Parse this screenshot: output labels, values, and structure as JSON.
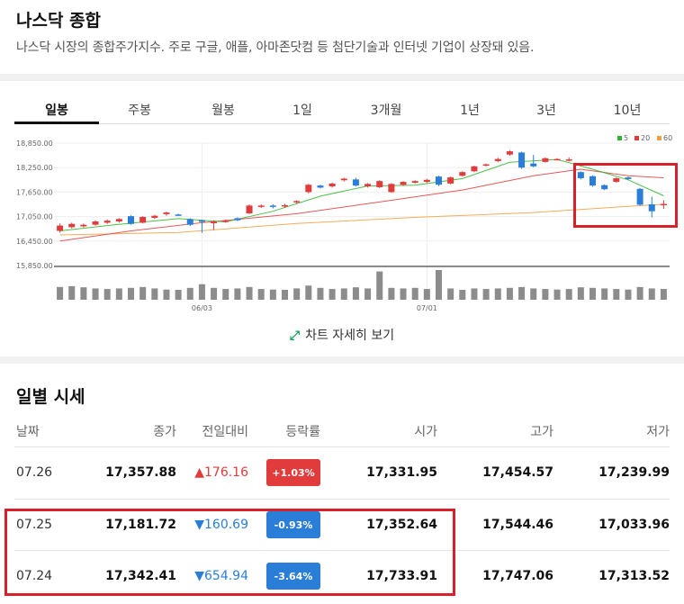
{
  "header": {
    "title": "나스닥 종합",
    "description": "나스닥 시장의 종합주가지수. 주로 구글, 애플, 아마존닷컴 등 첨단기술과 인터넷 기업이 상장돼 있음."
  },
  "tabs": [
    {
      "label": "일봉",
      "active": true
    },
    {
      "label": "주봉"
    },
    {
      "label": "월봉"
    },
    {
      "label": "1일"
    },
    {
      "label": "3개월"
    },
    {
      "label": "1년"
    },
    {
      "label": "3년"
    },
    {
      "label": "10년"
    }
  ],
  "chart_data": {
    "type": "candlestick",
    "y_ticks": [
      "18,850.00",
      "18,250.00",
      "17,650.00",
      "17,050.00",
      "16,450.00",
      "15,850.00"
    ],
    "ylim": [
      15850,
      18850
    ],
    "x_ticks": [
      {
        "label": "06/03",
        "index": 12
      },
      {
        "label": "07/01",
        "index": 31
      }
    ],
    "legend": [
      {
        "label": "5",
        "color": "#2db52d"
      },
      {
        "label": "20",
        "color": "#e23b3b"
      },
      {
        "label": "60",
        "color": "#f0a040"
      }
    ],
    "candles": [
      {
        "o": 16700,
        "c": 16830,
        "h": 16880,
        "l": 16660,
        "v": 45
      },
      {
        "o": 16790,
        "c": 16870,
        "h": 16900,
        "l": 16760,
        "v": 48
      },
      {
        "o": 16810,
        "c": 16850,
        "h": 16880,
        "l": 16780,
        "v": 44
      },
      {
        "o": 16850,
        "c": 16930,
        "h": 16960,
        "l": 16830,
        "v": 40
      },
      {
        "o": 16900,
        "c": 16950,
        "h": 16980,
        "l": 16870,
        "v": 38
      },
      {
        "o": 16930,
        "c": 16990,
        "h": 17010,
        "l": 16900,
        "v": 40
      },
      {
        "o": 17060,
        "c": 16870,
        "h": 17080,
        "l": 16850,
        "v": 42
      },
      {
        "o": 16900,
        "c": 17040,
        "h": 17060,
        "l": 16880,
        "v": 45
      },
      {
        "o": 17020,
        "c": 17070,
        "h": 17090,
        "l": 16990,
        "v": 40
      },
      {
        "o": 17110,
        "c": 17150,
        "h": 17170,
        "l": 17070,
        "v": 36
      },
      {
        "o": 17100,
        "c": 17090,
        "h": 17120,
        "l": 17070,
        "v": 35
      },
      {
        "o": 16990,
        "c": 16850,
        "h": 17010,
        "l": 16820,
        "v": 42
      },
      {
        "o": 16960,
        "c": 16920,
        "h": 16970,
        "l": 16650,
        "v": 55
      },
      {
        "o": 16900,
        "c": 16920,
        "h": 16960,
        "l": 16720,
        "v": 42
      },
      {
        "o": 16920,
        "c": 16950,
        "h": 16980,
        "l": 16900,
        "v": 38
      },
      {
        "o": 17010,
        "c": 16960,
        "h": 17030,
        "l": 16940,
        "v": 40
      },
      {
        "o": 17130,
        "c": 17320,
        "h": 17350,
        "l": 17110,
        "v": 45
      },
      {
        "o": 17290,
        "c": 17320,
        "h": 17350,
        "l": 17260,
        "v": 38
      },
      {
        "o": 17320,
        "c": 17310,
        "h": 17350,
        "l": 17250,
        "v": 36
      },
      {
        "o": 17330,
        "c": 17330,
        "h": 17360,
        "l": 17260,
        "v": 35
      },
      {
        "o": 17400,
        "c": 17430,
        "h": 17450,
        "l": 17360,
        "v": 40
      },
      {
        "o": 17650,
        "c": 17830,
        "h": 17850,
        "l": 17620,
        "v": 50
      },
      {
        "o": 17810,
        "c": 17760,
        "h": 17830,
        "l": 17740,
        "v": 42
      },
      {
        "o": 17790,
        "c": 17860,
        "h": 17880,
        "l": 17760,
        "v": 38
      },
      {
        "o": 17940,
        "c": 17980,
        "h": 18000,
        "l": 17910,
        "v": 40
      },
      {
        "o": 17960,
        "c": 17810,
        "h": 18000,
        "l": 17790,
        "v": 44
      },
      {
        "o": 17790,
        "c": 17850,
        "h": 17870,
        "l": 17760,
        "v": 40
      },
      {
        "o": 17770,
        "c": 17920,
        "h": 17940,
        "l": 17750,
        "v": 100
      },
      {
        "o": 17650,
        "c": 17850,
        "h": 17870,
        "l": 17630,
        "v": 42
      },
      {
        "o": 17830,
        "c": 17900,
        "h": 17920,
        "l": 17800,
        "v": 40
      },
      {
        "o": 17880,
        "c": 17920,
        "h": 17940,
        "l": 17860,
        "v": 42
      },
      {
        "o": 17900,
        "c": 17950,
        "h": 17970,
        "l": 17880,
        "v": 38
      },
      {
        "o": 18030,
        "c": 17830,
        "h": 18050,
        "l": 17800,
        "v": 105
      },
      {
        "o": 17860,
        "c": 18010,
        "h": 18030,
        "l": 17840,
        "v": 40
      },
      {
        "o": 18050,
        "c": 18140,
        "h": 18160,
        "l": 18030,
        "v": 35
      },
      {
        "o": 18160,
        "c": 18280,
        "h": 18300,
        "l": 18140,
        "v": 40
      },
      {
        "o": 18300,
        "c": 18330,
        "h": 18350,
        "l": 18280,
        "v": 38
      },
      {
        "o": 18410,
        "c": 18460,
        "h": 18490,
        "l": 18380,
        "v": 40
      },
      {
        "o": 18570,
        "c": 18650,
        "h": 18670,
        "l": 18540,
        "v": 42
      },
      {
        "o": 18620,
        "c": 18250,
        "h": 18640,
        "l": 18220,
        "v": 45
      },
      {
        "o": 18350,
        "c": 18280,
        "h": 18560,
        "l": 18260,
        "v": 40
      },
      {
        "o": 18390,
        "c": 18480,
        "h": 18500,
        "l": 18370,
        "v": 38
      },
      {
        "o": 18450,
        "c": 18460,
        "h": 18480,
        "l": 18430,
        "v": 36
      },
      {
        "o": 18440,
        "c": 18450,
        "h": 18500,
        "l": 18400,
        "v": 38
      },
      {
        "o": 18140,
        "c": 17990,
        "h": 18160,
        "l": 17960,
        "v": 44
      },
      {
        "o": 18040,
        "c": 17810,
        "h": 18060,
        "l": 17780,
        "v": 42
      },
      {
        "o": 17820,
        "c": 17720,
        "h": 17840,
        "l": 17700,
        "v": 40
      },
      {
        "o": 17900,
        "c": 17990,
        "h": 18010,
        "l": 17880,
        "v": 38
      },
      {
        "o": 18010,
        "c": 17970,
        "h": 18030,
        "l": 17950,
        "v": 36
      },
      {
        "o": 17730,
        "c": 17340,
        "h": 17750,
        "l": 17310,
        "v": 45
      },
      {
        "o": 17350,
        "c": 17180,
        "h": 17540,
        "l": 17030,
        "v": 40
      },
      {
        "o": 17330,
        "c": 17360,
        "h": 17450,
        "l": 17240,
        "v": 38
      }
    ],
    "ma5": [
      [
        0,
        16700
      ],
      [
        5,
        16860
      ],
      [
        10,
        17000
      ],
      [
        14,
        16920
      ],
      [
        18,
        17180
      ],
      [
        22,
        17550
      ],
      [
        26,
        17800
      ],
      [
        30,
        17820
      ],
      [
        34,
        17980
      ],
      [
        38,
        18380
      ],
      [
        42,
        18450
      ],
      [
        45,
        18210
      ],
      [
        48,
        17950
      ],
      [
        51,
        17560
      ]
    ],
    "ma20": [
      [
        0,
        16450
      ],
      [
        6,
        16700
      ],
      [
        12,
        16900
      ],
      [
        20,
        17120
      ],
      [
        28,
        17450
      ],
      [
        34,
        17700
      ],
      [
        40,
        18050
      ],
      [
        44,
        18210
      ],
      [
        48,
        18050
      ],
      [
        51,
        18000
      ]
    ],
    "ma60": [
      [
        0,
        16600
      ],
      [
        10,
        16660
      ],
      [
        20,
        16880
      ],
      [
        30,
        17030
      ],
      [
        40,
        17150
      ],
      [
        48,
        17300
      ],
      [
        51,
        17350
      ]
    ]
  },
  "detail_link": {
    "label": "차트 자세히 보기"
  },
  "daily": {
    "title": "일별 시세",
    "columns": [
      "날짜",
      "종가",
      "전일대비",
      "등락률",
      "시가",
      "고가",
      "저가"
    ],
    "rows": [
      {
        "date": "07.26",
        "close": "17,357.88",
        "diff": "176.16",
        "dir": "up",
        "rate": "+1.03%",
        "open": "17,331.95",
        "high": "17,454.57",
        "low": "17,239.99"
      },
      {
        "date": "07.25",
        "close": "17,181.72",
        "diff": "160.69",
        "dir": "down",
        "rate": "-0.93%",
        "open": "17,352.64",
        "high": "17,544.46",
        "low": "17,033.96"
      },
      {
        "date": "07.24",
        "close": "17,342.41",
        "diff": "654.94",
        "dir": "down",
        "rate": "-3.64%",
        "open": "17,733.91",
        "high": "17,747.06",
        "low": "17,313.52"
      }
    ]
  }
}
